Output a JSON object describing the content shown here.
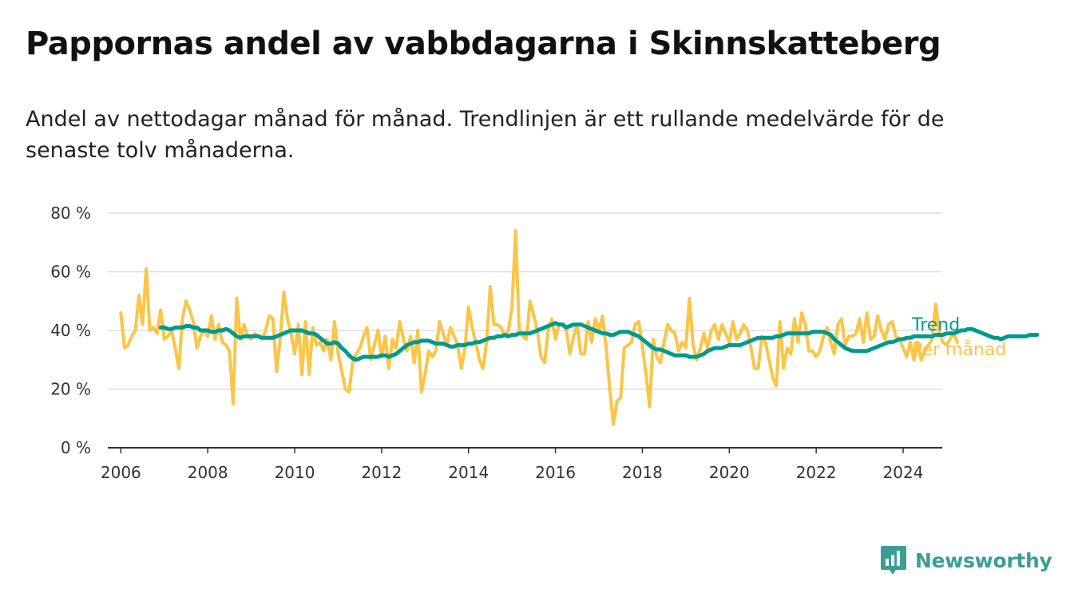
{
  "title": "Pappornas andel av vabbdagarna i Skinnskatteberg",
  "subtitle": "Andel av nettodagar månad för månad. Trendlinjen är ett rullande medelvärde för de senaste tolv månaderna.",
  "brand": {
    "name": "Newsworthy",
    "icon": "newsworthy-logo-icon",
    "color": "#3a9e96"
  },
  "chart_data": {
    "type": "line",
    "title": "Pappornas andel av vabbdagarna i Skinnskatteberg",
    "xlabel": "",
    "ylabel": "",
    "xlim": [
      2005.7,
      2024.9
    ],
    "ylim": [
      0,
      80
    ],
    "x_ticks": [
      2006,
      2008,
      2010,
      2012,
      2014,
      2016,
      2018,
      2020,
      2022,
      2024
    ],
    "y_ticks": [
      {
        "value": 0,
        "label": "0 %"
      },
      {
        "value": 20,
        "label": "20 %"
      },
      {
        "value": 40,
        "label": "40 %"
      },
      {
        "value": 60,
        "label": "60 %"
      },
      {
        "value": 80,
        "label": "80 %"
      }
    ],
    "grid": "horizontal",
    "legend": "end-of-line labels, right",
    "series": [
      {
        "name": "Per månad",
        "color": "#fbc547",
        "x_start": 2006.0,
        "step": 0.08333,
        "values": [
          46,
          34,
          35,
          38,
          40,
          52,
          42,
          61,
          40,
          41,
          39,
          47,
          37,
          38,
          40,
          34,
          27,
          44,
          50,
          47,
          43,
          34,
          38,
          40,
          38,
          45,
          37,
          42,
          36,
          35,
          33,
          15,
          51,
          37,
          42,
          38,
          37,
          39,
          38,
          37,
          40,
          45,
          44,
          26,
          37,
          53,
          44,
          39,
          32,
          42,
          25,
          43,
          25,
          41,
          35,
          36,
          33,
          37,
          30,
          43,
          32,
          26,
          20,
          19,
          29,
          32,
          34,
          38,
          41,
          30,
          35,
          40,
          31,
          38,
          27,
          37,
          34,
          43,
          37,
          33,
          38,
          29,
          40,
          19,
          25,
          33,
          31,
          33,
          43,
          39,
          35,
          41,
          38,
          35,
          27,
          34,
          48,
          41,
          36,
          30,
          27,
          36,
          55,
          42,
          42,
          41,
          38,
          40,
          48,
          74,
          40,
          38,
          37,
          50,
          45,
          40,
          31,
          29,
          40,
          44,
          37,
          42,
          42,
          40,
          32,
          38,
          42,
          32,
          32,
          43,
          36,
          44,
          40,
          45,
          34,
          20,
          8,
          16,
          17,
          34,
          35,
          36,
          42,
          43,
          35,
          25,
          14,
          37,
          31,
          29,
          36,
          42,
          40,
          39,
          33,
          36,
          34,
          51,
          35,
          30,
          34,
          39,
          34,
          40,
          42,
          37,
          42,
          39,
          36,
          43,
          37,
          39,
          42,
          40,
          34,
          27,
          27,
          38,
          36,
          30,
          24,
          21,
          43,
          27,
          34,
          32,
          44,
          36,
          46,
          42,
          33,
          33,
          31,
          33,
          38,
          41,
          36,
          32,
          42,
          44,
          35,
          38,
          38,
          39,
          44,
          36,
          46,
          37,
          38,
          45,
          40,
          37,
          42,
          43,
          38,
          37,
          34,
          31,
          36,
          30,
          36,
          30,
          33,
          35,
          37,
          49,
          39,
          36,
          35,
          37,
          39,
          36
        ]
      },
      {
        "name": "Trend",
        "color": "#009a8c",
        "x_start": 2006.917,
        "step": 0.08333,
        "values": [
          41,
          41,
          40.5,
          40.5,
          41,
          41,
          41,
          41.5,
          41.5,
          41,
          41,
          40,
          40,
          40,
          39.5,
          39.5,
          40,
          40,
          40.5,
          40,
          39,
          38,
          37.5,
          38,
          38,
          38,
          38,
          38,
          37.5,
          37.5,
          37.5,
          37.5,
          38,
          38.5,
          39,
          39.5,
          40,
          40,
          40,
          40,
          39.5,
          39,
          39,
          38.5,
          37.5,
          36.5,
          35.5,
          35.5,
          36,
          35.5,
          34,
          33,
          31.5,
          30.5,
          30,
          30.5,
          31,
          31,
          31,
          31,
          31,
          31.5,
          31.5,
          31,
          31.5,
          32,
          33,
          34,
          35,
          35.5,
          36,
          36,
          36.5,
          36.5,
          36.5,
          36,
          35.5,
          35.5,
          35.5,
          35,
          34.5,
          34.5,
          35,
          35,
          35,
          35.5,
          35.5,
          36,
          36,
          36.5,
          37,
          37.5,
          37.5,
          38,
          38,
          38.5,
          38,
          38.5,
          38.5,
          39,
          39,
          39,
          39,
          39.5,
          40,
          40.5,
          41,
          41.5,
          42,
          42.5,
          42,
          42,
          41,
          41.5,
          42,
          42,
          42,
          41.5,
          41,
          40.5,
          40,
          39.5,
          39,
          39,
          38.5,
          38.5,
          39,
          39.5,
          39.5,
          39.5,
          39,
          38.5,
          38,
          37,
          36,
          35,
          34,
          33.5,
          33.5,
          33,
          32.5,
          32,
          31.5,
          31.5,
          31.5,
          31.5,
          31,
          31,
          31,
          31.5,
          32,
          33,
          33.5,
          34,
          34,
          34,
          34.5,
          35,
          35,
          35,
          35,
          35.5,
          36,
          36.5,
          37,
          37.5,
          37.5,
          37.5,
          37.5,
          37.5,
          38,
          38,
          38.5,
          39,
          39,
          39,
          39,
          39,
          39,
          39,
          39.5,
          39.5,
          39.5,
          39.5,
          39,
          38.5,
          37,
          36,
          35,
          34,
          33.5,
          33,
          33,
          33,
          33,
          33,
          33.5,
          34,
          34.5,
          35,
          35.5,
          36,
          36,
          36.5,
          37,
          37,
          37.5,
          37.5,
          38,
          38,
          38,
          38,
          38,
          38,
          38.5,
          38.5,
          38.5,
          39,
          39,
          39,
          39.5,
          40,
          40,
          40.5,
          40.5,
          40,
          39.5,
          39,
          38.5,
          38,
          37.5,
          37.5,
          37,
          37.5,
          38,
          38,
          38,
          38,
          38,
          38,
          38.5,
          38.5,
          38.5
        ]
      }
    ]
  }
}
